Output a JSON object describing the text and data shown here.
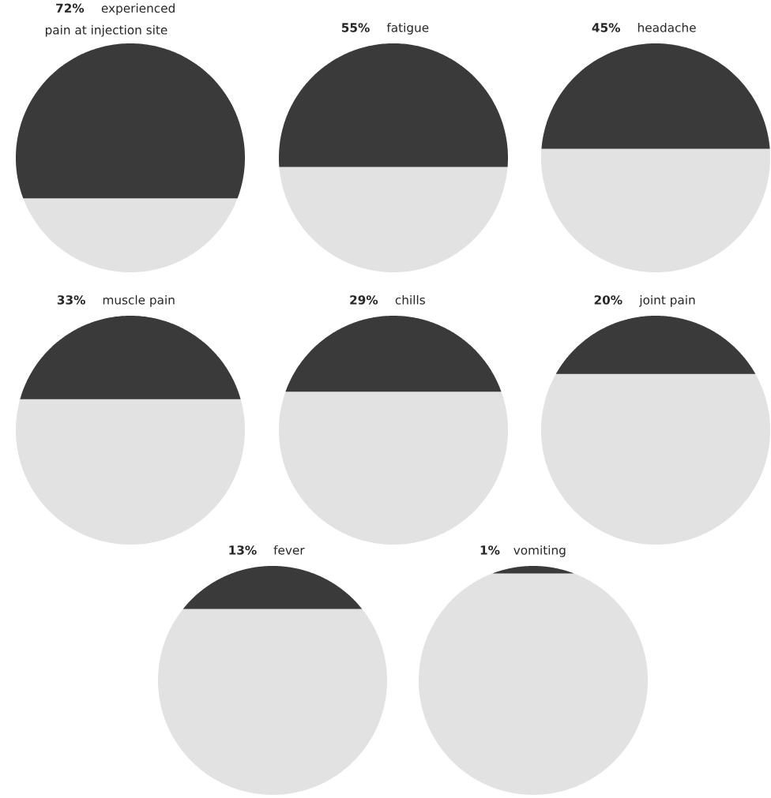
{
  "chart_data": [
    {
      "type": "other",
      "categories": [
        "experienced pain at injection site"
      ],
      "values": [
        72
      ],
      "value_labels": [
        "72%"
      ],
      "color": "#3a3a3a"
    },
    {
      "type": "other",
      "categories": [
        "fatigue"
      ],
      "values": [
        55
      ],
      "value_labels": [
        "55%"
      ],
      "color": "#3a3a3a"
    },
    {
      "type": "other",
      "categories": [
        "headache"
      ],
      "values": [
        45
      ],
      "value_labels": [
        "45%"
      ],
      "color": "#3a3a3a"
    },
    {
      "type": "other",
      "categories": [
        "muscle pain"
      ],
      "values": [
        33
      ],
      "value_labels": [
        "33%"
      ],
      "color": "#3a3a3a"
    },
    {
      "type": "other",
      "categories": [
        "chills"
      ],
      "values": [
        29
      ],
      "value_labels": [
        "29%"
      ],
      "color": "#3a3a3a"
    },
    {
      "type": "other",
      "categories": [
        "joint pain"
      ],
      "values": [
        20
      ],
      "value_labels": [
        "20%"
      ],
      "color": "#3a3a3a"
    },
    {
      "type": "other",
      "categories": [
        "fever"
      ],
      "values": [
        13
      ],
      "value_labels": [
        "13%"
      ],
      "color": "#3a3a3a"
    },
    {
      "type": "other",
      "categories": [
        "vomiting"
      ],
      "values": [
        1
      ],
      "value_labels": [
        "1%"
      ],
      "color": "#3a3a3a"
    }
  ]
}
